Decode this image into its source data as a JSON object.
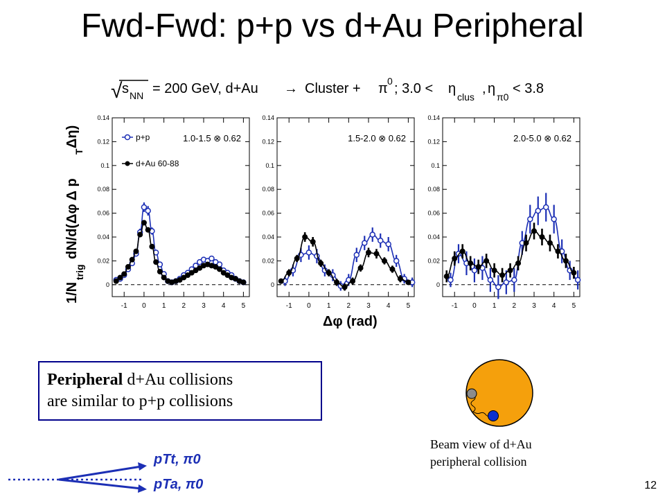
{
  "title": "Fwd-Fwd: p+p vs d+Au Peripheral",
  "slide_number": "12",
  "header_formula": {
    "sqrt_sym": "√",
    "s_label": "s",
    "s_sub": "NN",
    "rest": "= 200 GeV, d+Au",
    "arrow": "→",
    "cluster": "Cluster +",
    "pi": "π",
    "pi_sup": "0",
    "cond": "; 3.0 <",
    "eta1": "η",
    "eta1_sub": "clus",
    "comma": ",",
    "eta2": "η",
    "eta2_sub": "π0",
    "upper": "< 3.8"
  },
  "ylabel_text": "1/N",
  "ylabel_sub": "trig",
  "ylabel_rest": " dN/d(Δφ Δ p",
  "ylabel_sub2": "T",
  "ylabel_end": " Δη)",
  "xlabel": "Δφ (rad)",
  "legend": {
    "pp": "p+p",
    "dau": "d+Au 60-88"
  },
  "colors": {
    "pp": "#1c2fb5",
    "dau": "#000000",
    "orange": "#f5a00c",
    "gray": "#8c8c8c",
    "blue_dot": "#0a2fd0"
  },
  "textbox": {
    "bold": "Peripheral",
    "line1_rest": " d+Au collisions",
    "line2": "are similar to p+p collisions"
  },
  "beam_caption": {
    "line1": "Beam view of d+Au",
    "line2": "peripheral collision"
  },
  "vectors": {
    "pt_t": "pTt, π0",
    "pt_a": "pTa, π0"
  },
  "chart_data": [
    {
      "type": "scatter",
      "panel_label": "1.0-1.5 ⊗ 0.62",
      "xlim": [
        -1.6,
        5.3
      ],
      "ylim": [
        -0.01,
        0.14
      ],
      "xticks": [
        "-1",
        "0",
        "1",
        "2",
        "3",
        "4",
        "5"
      ],
      "yticks": [
        "0",
        "0.02",
        "0.04",
        "0.06",
        "0.08",
        "0.1",
        "0.12",
        "0.14"
      ],
      "series": [
        {
          "name": "p+p",
          "marker": "open-circle",
          "x": [
            -1.4,
            -1.2,
            -1.0,
            -0.8,
            -0.6,
            -0.4,
            -0.2,
            0.0,
            0.2,
            0.4,
            0.6,
            0.8,
            1.0,
            1.2,
            1.4,
            1.6,
            1.8,
            2.0,
            2.2,
            2.4,
            2.6,
            2.8,
            3.0,
            3.2,
            3.4,
            3.6,
            3.8,
            4.0,
            4.2,
            4.4,
            4.6,
            4.8,
            5.0
          ],
          "y": [
            0.004,
            0.005,
            0.008,
            0.013,
            0.018,
            0.026,
            0.044,
            0.065,
            0.062,
            0.045,
            0.027,
            0.017,
            0.009,
            0.003,
            0.002,
            0.003,
            0.005,
            0.008,
            0.01,
            0.013,
            0.016,
            0.019,
            0.021,
            0.02,
            0.022,
            0.019,
            0.017,
            0.012,
            0.01,
            0.008,
            0.005,
            0.003,
            0.002
          ],
          "err": [
            0.002,
            0.002,
            0.002,
            0.002,
            0.002,
            0.002,
            0.003,
            0.004,
            0.004,
            0.003,
            0.002,
            0.002,
            0.002,
            0.002,
            0.002,
            0.002,
            0.002,
            0.002,
            0.002,
            0.002,
            0.002,
            0.002,
            0.002,
            0.002,
            0.002,
            0.002,
            0.002,
            0.002,
            0.002,
            0.002,
            0.002,
            0.002,
            0.002
          ]
        },
        {
          "name": "d+Au 60-88",
          "marker": "filled-circle",
          "x": [
            -1.4,
            -1.2,
            -1.0,
            -0.8,
            -0.6,
            -0.4,
            -0.2,
            0.0,
            0.2,
            0.4,
            0.6,
            0.8,
            1.0,
            1.2,
            1.4,
            1.6,
            1.8,
            2.0,
            2.2,
            2.4,
            2.6,
            2.8,
            3.0,
            3.2,
            3.4,
            3.6,
            3.8,
            4.0,
            4.2,
            4.4,
            4.6,
            4.8,
            5.0
          ],
          "y": [
            0.003,
            0.006,
            0.009,
            0.015,
            0.021,
            0.028,
            0.042,
            0.052,
            0.046,
            0.032,
            0.019,
            0.011,
            0.006,
            0.003,
            0.002,
            0.003,
            0.004,
            0.006,
            0.008,
            0.01,
            0.012,
            0.014,
            0.016,
            0.017,
            0.016,
            0.015,
            0.013,
            0.01,
            0.008,
            0.006,
            0.005,
            0.003,
            0.002
          ],
          "err": [
            0.001,
            0.001,
            0.001,
            0.001,
            0.001,
            0.001,
            0.002,
            0.002,
            0.002,
            0.002,
            0.001,
            0.001,
            0.001,
            0.001,
            0.001,
            0.001,
            0.001,
            0.001,
            0.001,
            0.001,
            0.001,
            0.001,
            0.001,
            0.001,
            0.001,
            0.001,
            0.001,
            0.001,
            0.001,
            0.001,
            0.001,
            0.001,
            0.001
          ]
        }
      ]
    },
    {
      "type": "scatter",
      "panel_label": "1.5-2.0 ⊗ 0.62",
      "xlim": [
        -1.6,
        5.3
      ],
      "ylim": [
        -0.01,
        0.14
      ],
      "xticks": [
        "-1",
        "0",
        "1",
        "2",
        "3",
        "4",
        "5"
      ],
      "yticks": [
        "0",
        "0.02",
        "0.04",
        "0.06",
        "0.08",
        "0.1",
        "0.12",
        "0.14"
      ],
      "series": [
        {
          "name": "p+p",
          "marker": "open-circle",
          "x": [
            -1.2,
            -0.8,
            -0.4,
            0.0,
            0.4,
            0.8,
            1.2,
            1.6,
            2.0,
            2.4,
            2.8,
            3.2,
            3.6,
            4.0,
            4.4,
            4.8,
            5.2
          ],
          "y": [
            0.003,
            0.012,
            0.025,
            0.027,
            0.024,
            0.012,
            0.008,
            -0.001,
            0.004,
            0.025,
            0.035,
            0.042,
            0.037,
            0.034,
            0.02,
            0.005,
            0.002
          ],
          "err": [
            0.004,
            0.005,
            0.006,
            0.006,
            0.006,
            0.005,
            0.005,
            0.004,
            0.005,
            0.006,
            0.006,
            0.006,
            0.006,
            0.006,
            0.005,
            0.004,
            0.004
          ]
        },
        {
          "name": "d+Au 60-88",
          "marker": "filled-circle",
          "x": [
            -1.4,
            -1.0,
            -0.6,
            -0.2,
            0.2,
            0.6,
            1.0,
            1.4,
            1.8,
            2.2,
            2.6,
            3.0,
            3.4,
            3.8,
            4.2,
            4.6,
            5.0
          ],
          "y": [
            0.003,
            0.01,
            0.022,
            0.04,
            0.036,
            0.018,
            0.01,
            0.002,
            -0.002,
            0.003,
            0.014,
            0.027,
            0.026,
            0.02,
            0.013,
            0.005,
            0.002
          ],
          "err": [
            0.002,
            0.003,
            0.003,
            0.004,
            0.004,
            0.003,
            0.003,
            0.003,
            0.003,
            0.003,
            0.003,
            0.004,
            0.004,
            0.003,
            0.003,
            0.003,
            0.002
          ]
        }
      ]
    },
    {
      "type": "scatter",
      "panel_label": "2.0-5.0 ⊗ 0.62",
      "xlim": [
        -1.6,
        5.3
      ],
      "ylim": [
        -0.01,
        0.14
      ],
      "xticks": [
        "-1",
        "0",
        "1",
        "2",
        "3",
        "4",
        "5"
      ],
      "yticks": [
        "0",
        "0.02",
        "0.04",
        "0.06",
        "0.08",
        "0.1",
        "0.12",
        "0.14"
      ],
      "series": [
        {
          "name": "p+p",
          "marker": "open-circle",
          "x": [
            -1.2,
            -0.8,
            -0.4,
            0.0,
            0.4,
            0.8,
            1.2,
            1.6,
            2.0,
            2.4,
            2.8,
            3.2,
            3.6,
            4.0,
            4.4,
            4.8,
            5.2
          ],
          "y": [
            0.004,
            0.026,
            0.018,
            0.012,
            0.014,
            0.004,
            -0.002,
            0.002,
            0.004,
            0.035,
            0.055,
            0.062,
            0.065,
            0.055,
            0.028,
            0.012,
            0.004
          ],
          "err": [
            0.006,
            0.008,
            0.01,
            0.01,
            0.01,
            0.01,
            0.01,
            0.01,
            0.01,
            0.01,
            0.012,
            0.012,
            0.012,
            0.012,
            0.01,
            0.008,
            0.008
          ]
        },
        {
          "name": "d+Au 60-88",
          "marker": "filled-circle",
          "x": [
            -1.4,
            -1.0,
            -0.6,
            -0.2,
            0.2,
            0.6,
            1.0,
            1.4,
            1.8,
            2.2,
            2.6,
            3.0,
            3.4,
            3.8,
            4.2,
            4.6,
            5.0
          ],
          "y": [
            0.007,
            0.022,
            0.028,
            0.018,
            0.015,
            0.02,
            0.012,
            0.008,
            0.012,
            0.018,
            0.035,
            0.045,
            0.04,
            0.035,
            0.028,
            0.02,
            0.01
          ],
          "err": [
            0.005,
            0.006,
            0.006,
            0.006,
            0.006,
            0.006,
            0.006,
            0.006,
            0.006,
            0.006,
            0.007,
            0.007,
            0.007,
            0.007,
            0.006,
            0.006,
            0.005
          ]
        }
      ]
    }
  ]
}
